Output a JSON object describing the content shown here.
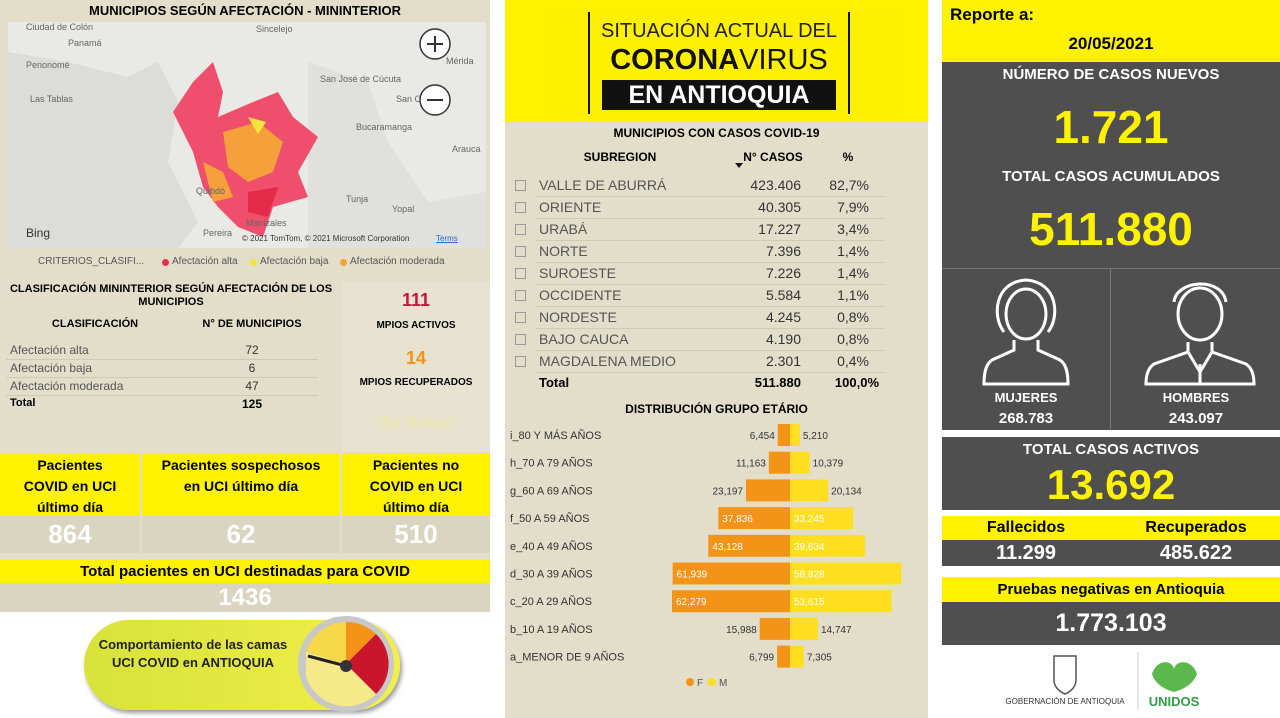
{
  "left": {
    "map_title": "MUNICIPIOS SEGÚN AFECTACIÓN - MININTERIOR",
    "map_labels": [
      "Ciudad de Colón",
      "Panamá",
      "Penonomé",
      "Las Tablas",
      "Sincelejo",
      "Mérida",
      "San José de Cúcuta",
      "San C",
      "Bucaramanga",
      "Arauca",
      "Quibdó",
      "Tunja",
      "Yopal",
      "Manizales",
      "Pereira"
    ],
    "map_credits": {
      "provider": "Bing",
      "copyright": "© 2021 TomTom, © 2021 Microsoft Corporation",
      "terms": "Terms"
    },
    "legend": {
      "title": "CRITERIOS_CLASIFI...",
      "items": [
        {
          "label": "Afectación alta",
          "color": "#e8304f"
        },
        {
          "label": "Afectación baja",
          "color": "#f2e63a"
        },
        {
          "label": "Afectación moderada",
          "color": "#f5a03a"
        }
      ]
    },
    "classification": {
      "title": "CLASIFICACIÓN MININTERIOR SEGÚN AFECTACIÓN DE LOS MUNICIPIOS",
      "header": [
        "CLASIFICACIÓN",
        "N° DE MUNICIPIOS"
      ],
      "rows": [
        [
          "Afectación alta",
          "72"
        ],
        [
          "Afectación baja",
          "6"
        ],
        [
          "Afectación moderada",
          "47"
        ]
      ],
      "total": [
        "Total",
        "125"
      ]
    },
    "kpis": [
      {
        "value": "111",
        "label": "MPIOS ACTIVOS"
      },
      {
        "value": "14",
        "label": "MPIOS RECUPERADOS"
      }
    ],
    "faded_note": "(En blanco)",
    "uci": [
      {
        "label": "Pacientes COVID en UCI último día",
        "value": "864"
      },
      {
        "label": "Pacientes sospechosos en UCI último día",
        "value": "62"
      },
      {
        "label": "Pacientes no COVID en UCI último día",
        "value": "510"
      }
    ],
    "uci_total": {
      "label": "Total pacientes en UCI destinadas para COVID",
      "value": "1436"
    },
    "button": "Comportamiento de las camas UCI COVID en ANTIOQUIA"
  },
  "header": {
    "line1": "SITUACIÓN ACTUAL DEL",
    "line2a": "CORONA",
    "line2b": "VIRUS",
    "line3": "EN ANTIOQUIA"
  },
  "municipios_table": {
    "title": "MUNICIPIOS CON CASOS COVID-19",
    "header": [
      "SUBREGION",
      "N° CASOS",
      "%"
    ],
    "rows": [
      [
        "VALLE DE ABURRÁ",
        "423.406",
        "82,7%"
      ],
      [
        "ORIENTE",
        "40.305",
        "7,9%"
      ],
      [
        "URABÁ",
        "17.227",
        "3,4%"
      ],
      [
        "NORTE",
        "7.396",
        "1,4%"
      ],
      [
        "SUROESTE",
        "7.226",
        "1,4%"
      ],
      [
        "OCCIDENTE",
        "5.584",
        "1,1%"
      ],
      [
        "NORDESTE",
        "4.245",
        "0,8%"
      ],
      [
        "BAJO CAUCA",
        "4.190",
        "0,8%"
      ],
      [
        "MAGDALENA MEDIO",
        "2.301",
        "0,4%"
      ]
    ],
    "total": [
      "Total",
      "511.880",
      "100,0%"
    ]
  },
  "chart_data": {
    "type": "bar",
    "title": "DISTRIBUCIÓN GRUPO ETÁRIO",
    "categories": [
      "i_80 Y MÁS AÑOS",
      "h_70 A 79 AÑOS",
      "g_60 A 69 AÑOS",
      "f_50 A 59 AÑOS",
      "e_40 A 49 AÑOS",
      "d_30 A 39 AÑOS",
      "c_20 A 29 AÑOS",
      "b_10 A 19 AÑOS",
      "a_MENOR DE 9 AÑOS"
    ],
    "series": [
      {
        "name": "F",
        "color": "#f39318",
        "values": [
          6454,
          11163,
          23197,
          37836,
          43128,
          61939,
          62279,
          15988,
          6799
        ],
        "value_labels": [
          "6,454",
          "11,163",
          "23,197",
          "37,836",
          "43,128",
          "61,939",
          "62,279",
          "15,988",
          "6,799"
        ]
      },
      {
        "name": "M",
        "color": "#ffdf1f",
        "values": [
          5210,
          10379,
          20134,
          33245,
          39634,
          58828,
          53615,
          14747,
          7305
        ],
        "value_labels": [
          "5,210",
          "10,379",
          "20,134",
          "33,245",
          "39,634",
          "58,828",
          "53,615",
          "14,747",
          "7,305"
        ]
      }
    ]
  },
  "right": {
    "report_label": "Reporte a:",
    "report_date": "20/05/2021",
    "new_cases": {
      "label": "NÚMERO DE CASOS NUEVOS",
      "value": "1.721"
    },
    "total_cases": {
      "label": "TOTAL CASOS ACUMULADOS",
      "value": "511.880"
    },
    "women": {
      "label": "MUJERES",
      "value": "268.783"
    },
    "men": {
      "label": "HOMBRES",
      "value": "243.097"
    },
    "active": {
      "label": "TOTAL CASOS ACTIVOS",
      "value": "13.692"
    },
    "deaths": {
      "label": "Fallecidos",
      "value": "11.299"
    },
    "recovered": {
      "label": "Recuperados",
      "value": "485.622"
    },
    "negative_tests": {
      "label": "Pruebas negativas en Antioquia",
      "value": "1.773.103"
    },
    "logos": [
      "GOBERNACIÓN DE ANTIOQUIA",
      "UNIDOS"
    ]
  }
}
